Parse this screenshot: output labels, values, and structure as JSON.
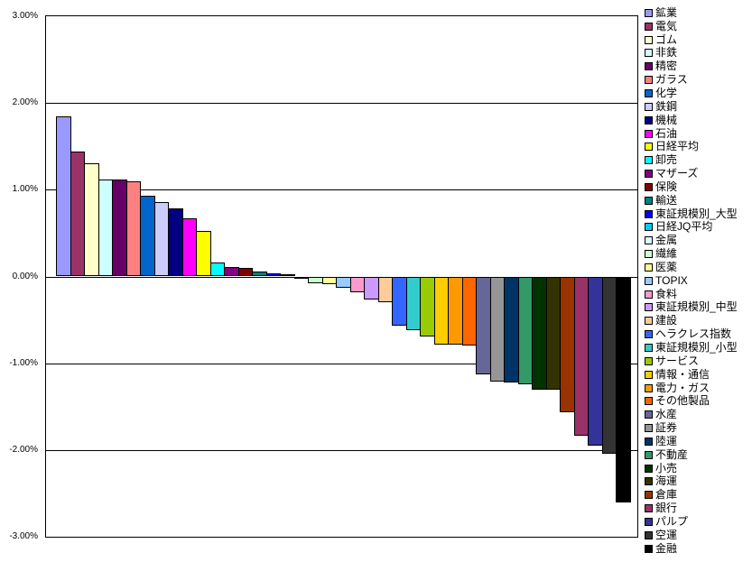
{
  "chart_data": {
    "type": "bar",
    "title": "",
    "xlabel": "",
    "ylabel": "",
    "ylim": [
      -3,
      3
    ],
    "grid": "horizontal",
    "legend_position": "right",
    "yticks": [
      "3.00%",
      "2.00%",
      "1.00%",
      "0.00%",
      "-1.00%",
      "-2.00%",
      "-3.00%"
    ],
    "series": [
      {
        "name": "鉱業",
        "value": 1.85,
        "color": "#9999FF"
      },
      {
        "name": "電気",
        "value": 1.44,
        "color": "#993366"
      },
      {
        "name": "ゴム",
        "value": 1.31,
        "color": "#FFFFCC"
      },
      {
        "name": "非鉄",
        "value": 1.12,
        "color": "#CCFFFF"
      },
      {
        "name": "精密",
        "value": 1.12,
        "color": "#660066"
      },
      {
        "name": "ガラス",
        "value": 1.1,
        "color": "#FF8080"
      },
      {
        "name": "化学",
        "value": 0.93,
        "color": "#0066CC"
      },
      {
        "name": "鉄鋼",
        "value": 0.86,
        "color": "#CCCCFF"
      },
      {
        "name": "機械",
        "value": 0.79,
        "color": "#000080"
      },
      {
        "name": "石油",
        "value": 0.67,
        "color": "#FF00FF"
      },
      {
        "name": "日経平均",
        "value": 0.52,
        "color": "#FFFF00"
      },
      {
        "name": "卸売",
        "value": 0.16,
        "color": "#00FFFF"
      },
      {
        "name": "マザーズ",
        "value": 0.11,
        "color": "#800080"
      },
      {
        "name": "保険",
        "value": 0.1,
        "color": "#800000"
      },
      {
        "name": "輸送",
        "value": 0.06,
        "color": "#008080"
      },
      {
        "name": "東証規模別_大型",
        "value": 0.04,
        "color": "#0000FF"
      },
      {
        "name": "日経JQ平均",
        "value": 0.03,
        "color": "#00CCFF"
      },
      {
        "name": "金属",
        "value": -0.01,
        "color": "#CCFFFF"
      },
      {
        "name": "繊維",
        "value": -0.08,
        "color": "#CCFFCC"
      },
      {
        "name": "医薬",
        "value": -0.09,
        "color": "#FFFF99"
      },
      {
        "name": "TOPIX",
        "value": -0.13,
        "color": "#99CCFF"
      },
      {
        "name": "食料",
        "value": -0.18,
        "color": "#FF99CC"
      },
      {
        "name": "東証規模別_中型",
        "value": -0.27,
        "color": "#CC99FF"
      },
      {
        "name": "建設",
        "value": -0.3,
        "color": "#FFCC99"
      },
      {
        "name": "ヘラクレス指数",
        "value": -0.57,
        "color": "#3366FF"
      },
      {
        "name": "東証規模別_小型",
        "value": -0.62,
        "color": "#33CCCC"
      },
      {
        "name": "サービス",
        "value": -0.69,
        "color": "#99CC00"
      },
      {
        "name": "情報・通信",
        "value": -0.78,
        "color": "#FFCC00"
      },
      {
        "name": "電力・ガス",
        "value": -0.78,
        "color": "#FF9900"
      },
      {
        "name": "その他製品",
        "value": -0.8,
        "color": "#FF6600"
      },
      {
        "name": "水産",
        "value": -1.13,
        "color": "#666699"
      },
      {
        "name": "証券",
        "value": -1.21,
        "color": "#969696"
      },
      {
        "name": "陸運",
        "value": -1.22,
        "color": "#003366"
      },
      {
        "name": "不動産",
        "value": -1.24,
        "color": "#339966"
      },
      {
        "name": "小売",
        "value": -1.3,
        "color": "#003300"
      },
      {
        "name": "海運",
        "value": -1.31,
        "color": "#333300"
      },
      {
        "name": "倉庫",
        "value": -1.57,
        "color": "#993300"
      },
      {
        "name": "銀行",
        "value": -1.84,
        "color": "#993366"
      },
      {
        "name": "パルプ",
        "value": -1.95,
        "color": "#333399"
      },
      {
        "name": "空運",
        "value": -2.04,
        "color": "#333333"
      },
      {
        "name": "金融",
        "value": -2.61,
        "color": "#000000"
      }
    ]
  }
}
